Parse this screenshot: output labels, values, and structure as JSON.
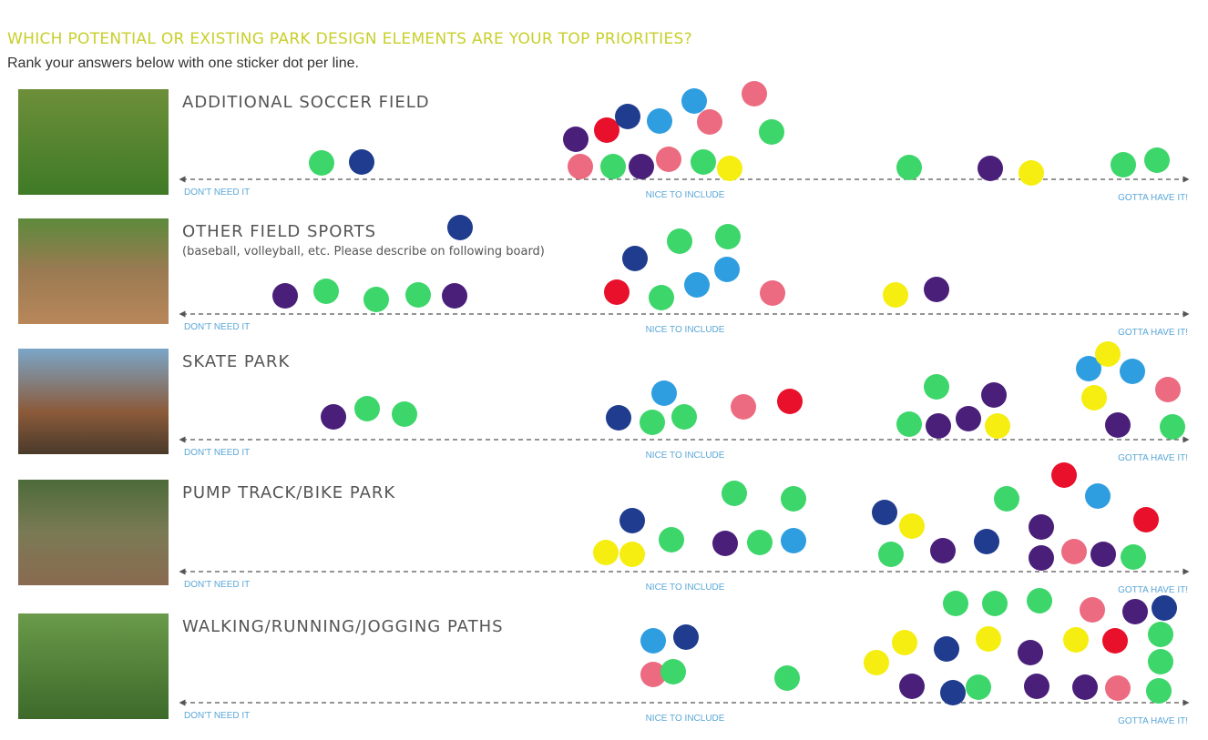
{
  "header": {
    "title": "WHICH POTENTIAL OR EXISTING PARK DESIGN ELEMENTS ARE YOUR TOP PRIORITIES?",
    "subtitle": "Rank your answers below with one sticker dot per line."
  },
  "rows": [
    {
      "label": "ADDITIONAL SOCCER FIELD",
      "scale": {
        "low": "DON'T NEED IT",
        "mid": "NICE TO INCLUDE",
        "high": "GOTTA HAVE IT!"
      }
    },
    {
      "label": "OTHER FIELD SPORTS",
      "note": "(baseball, volleyball, etc. Please describe on following board)",
      "scale": {
        "low": "DON'T NEED IT",
        "mid": "NICE TO INCLUDE",
        "high": "GOTTA HAVE IT!"
      }
    },
    {
      "label": "SKATE PARK",
      "scale": {
        "low": "DON'T NEED IT",
        "mid": "NICE TO INCLUDE",
        "high": "GOTTA HAVE IT!"
      }
    },
    {
      "label": "PUMP TRACK/BIKE PARK",
      "scale": {
        "low": "DON'T NEED IT",
        "mid": "NICE TO INCLUDE",
        "high": "GOTTA HAVE IT!"
      }
    },
    {
      "label": "WALKING/RUNNING/JOGGING PATHS",
      "scale": {
        "low": "DON'T NEED IT",
        "mid": "NICE TO INCLUDE",
        "high": "GOTTA HAVE IT!"
      }
    }
  ]
}
